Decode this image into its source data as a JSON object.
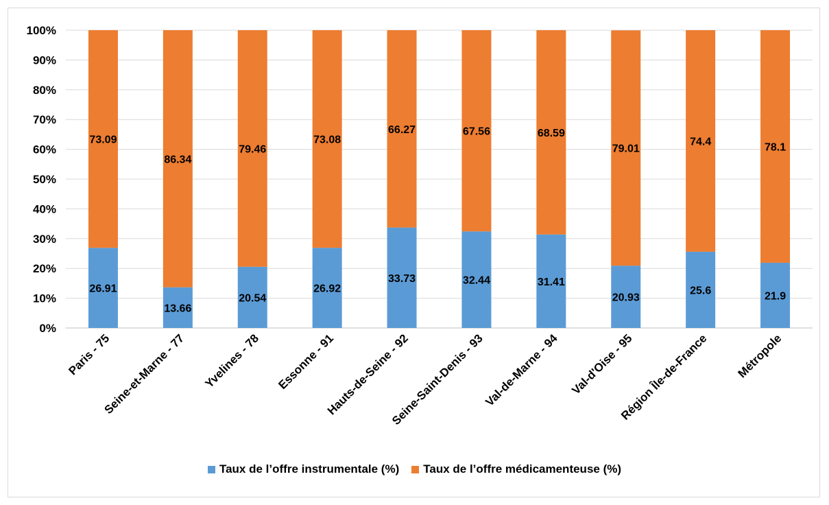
{
  "chart_data": {
    "type": "bar",
    "stacked": true,
    "percent_stacked": true,
    "categories": [
      "Paris - 75",
      "Seine-et-Marne - 77",
      "Yvelines - 78",
      "Essonne - 91",
      "Hauts-de-Seine - 92",
      "Seine-Saint-Denis - 93",
      "Val-de-Marne - 94",
      "Val-d'Oise - 95",
      "Région Île-de-France",
      "Métropole"
    ],
    "series": [
      {
        "name": "Taux de l’offre instrumentale (%)",
        "color": "#5b9bd5",
        "values": [
          26.91,
          13.66,
          20.54,
          26.92,
          33.73,
          32.44,
          31.41,
          20.93,
          25.6,
          21.9
        ],
        "labels": [
          "26.91",
          "13.66",
          "20.54",
          "26.92",
          "33.73",
          "32.44",
          "31.41",
          "20.93",
          "25.6",
          "21.9"
        ]
      },
      {
        "name": "Taux de l’offre médicamenteuse (%)",
        "color": "#ed7d31",
        "values": [
          73.09,
          86.34,
          79.46,
          73.08,
          66.27,
          67.56,
          68.59,
          79.01,
          74.4,
          78.1
        ],
        "labels": [
          "73.09",
          "86.34",
          "79.46",
          "73.08",
          "66.27",
          "67.56",
          "68.59",
          "79.01",
          "74.4",
          "78.1"
        ]
      }
    ],
    "y_ticks": [
      "0%",
      "10%",
      "20%",
      "30%",
      "40%",
      "50%",
      "60%",
      "70%",
      "80%",
      "90%",
      "100%"
    ],
    "ylim": [
      0,
      100
    ],
    "grid": true,
    "legend_position": "bottom"
  }
}
